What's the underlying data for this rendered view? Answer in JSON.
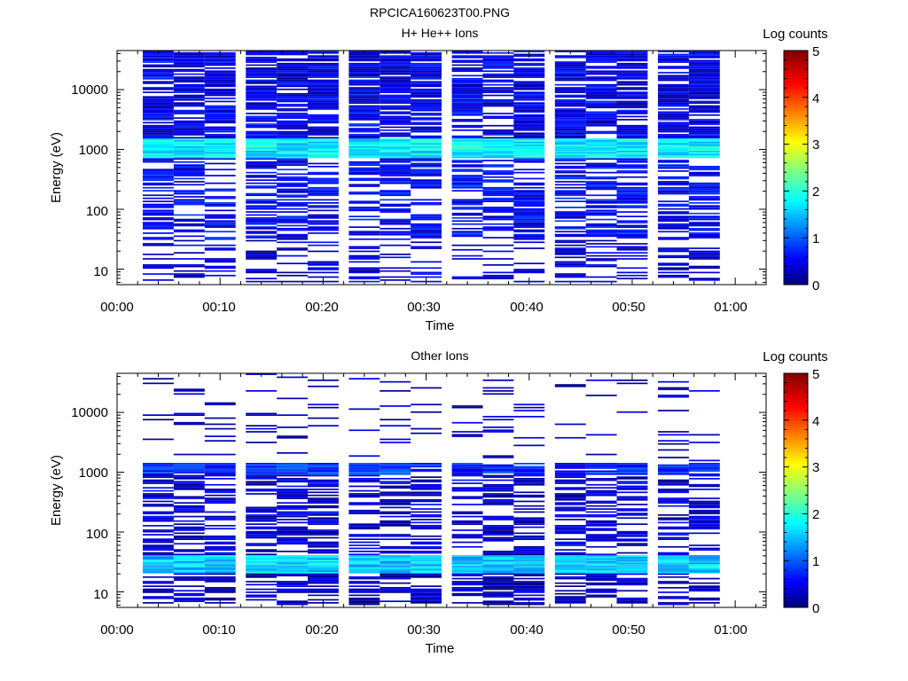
{
  "figure_title": "RPCICA160623T00.PNG",
  "colorbar_label": "Log counts",
  "colorbar_ticks": [
    "0",
    "1",
    "2",
    "3",
    "4",
    "5"
  ],
  "x_ticks": [
    "00:00",
    "00:10",
    "00:20",
    "00:30",
    "00:40",
    "00:50",
    "01:00"
  ],
  "y_ticks": [
    "10",
    "100",
    "1000",
    "10000"
  ],
  "chart_data": [
    {
      "type": "heatmap",
      "title": "H+ He++ Ions",
      "xlabel": "Time",
      "ylabel": "Energy (eV)",
      "xlim": [
        "00:00",
        "01:03"
      ],
      "ylim": [
        5.5,
        45000
      ],
      "y_scale": "log",
      "colorbar": {
        "label": "Log counts",
        "range": [
          0,
          5
        ],
        "colormap": "jet"
      },
      "time_columns": [
        "00:04",
        "00:07",
        "00:10",
        "00:14",
        "00:17",
        "00:20",
        "00:24",
        "00:27",
        "00:30",
        "00:34",
        "00:37",
        "00:40",
        "00:44",
        "00:47",
        "00:50",
        "00:54",
        "00:57"
      ],
      "profile": [
        {
          "energy_range_eV": [
            6,
            30
          ],
          "log_counts": 0.4,
          "coverage": 0.35
        },
        {
          "energy_range_eV": [
            30,
            700
          ],
          "log_counts": 0.6,
          "coverage": 0.62
        },
        {
          "energy_range_eV": [
            700,
            1500
          ],
          "log_counts": 1.8,
          "coverage": 1.0
        },
        {
          "energy_range_eV": [
            1500,
            45000
          ],
          "log_counts": 0.5,
          "coverage": 0.8
        }
      ]
    },
    {
      "type": "heatmap",
      "title": "Other Ions",
      "xlabel": "Time",
      "ylabel": "Energy (eV)",
      "xlim": [
        "00:00",
        "01:03"
      ],
      "ylim": [
        5.5,
        45000
      ],
      "y_scale": "log",
      "colorbar": {
        "label": "Log counts",
        "range": [
          0,
          5
        ],
        "colormap": "jet"
      },
      "time_columns": [
        "00:04",
        "00:07",
        "00:10",
        "00:14",
        "00:17",
        "00:20",
        "00:24",
        "00:27",
        "00:30",
        "00:34",
        "00:37",
        "00:40",
        "00:44",
        "00:47",
        "00:50",
        "00:54",
        "00:57"
      ],
      "profile": [
        {
          "energy_range_eV": [
            6,
            20
          ],
          "log_counts": 0.3,
          "coverage": 0.55
        },
        {
          "energy_range_eV": [
            20,
            40
          ],
          "log_counts": 1.6,
          "coverage": 1.0
        },
        {
          "energy_range_eV": [
            40,
            900
          ],
          "log_counts": 0.4,
          "coverage": 0.55
        },
        {
          "energy_range_eV": [
            900,
            1400
          ],
          "log_counts": 0.8,
          "coverage": 0.9
        },
        {
          "energy_range_eV": [
            1400,
            45000
          ],
          "log_counts": 0.3,
          "coverage": 0.12
        }
      ]
    }
  ]
}
